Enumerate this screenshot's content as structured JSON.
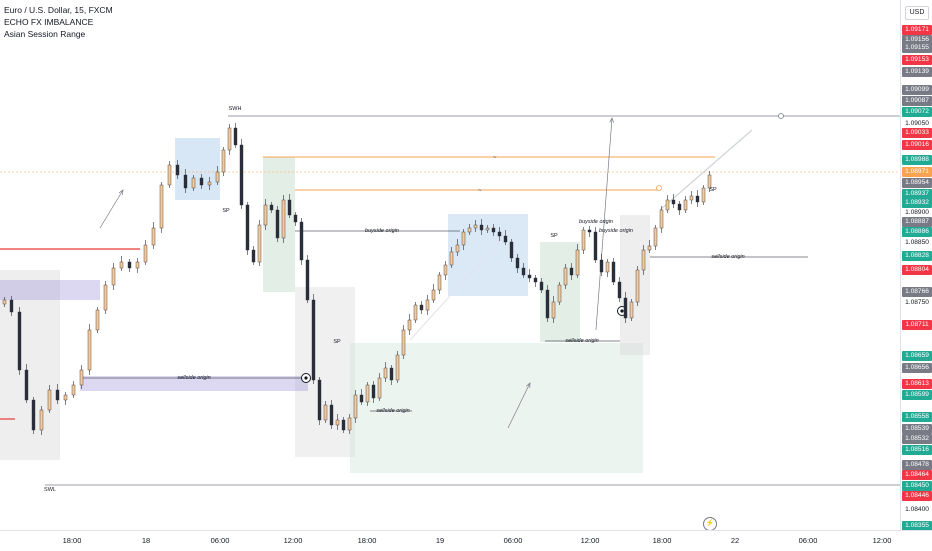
{
  "legend": {
    "symbol": "Euro / U.S. Dollar, 15, FXCM",
    "indicator_1": "ECHO FX IMBALANCE",
    "indicator_2": "Asian Session Range"
  },
  "price_scale": {
    "currency": "USD",
    "labels": [
      {
        "text": "1.09171",
        "color": "#f23645"
      },
      {
        "text": "1.09156",
        "color": "#787b86"
      },
      {
        "text": "1.09155",
        "color": "#787b86"
      },
      {
        "text": "1.09153",
        "color": "#f23645"
      },
      {
        "text": "1.09139",
        "color": "#787b86"
      },
      {
        "text": "1.09099",
        "color": "#787b86"
      },
      {
        "text": "1.09087",
        "color": "#787b86"
      },
      {
        "text": "1.09072",
        "color": "#22ab94"
      },
      {
        "text": "1.09050",
        "color": ""
      },
      {
        "text": "1.09033",
        "color": "#f23645"
      },
      {
        "text": "1.09016",
        "color": "#f23645"
      },
      {
        "text": "1.08988",
        "color": "#22ab94"
      },
      {
        "text": "1.08971",
        "color": "#f7a350"
      },
      {
        "text": "1.08954",
        "color": "#787b86"
      },
      {
        "text": "1.08937",
        "color": "#22ab94"
      },
      {
        "text": "1.08932",
        "color": "#22ab94"
      },
      {
        "text": "1.08900",
        "color": ""
      },
      {
        "text": "1.08887",
        "color": "#787b86"
      },
      {
        "text": "1.08886",
        "color": "#22ab94"
      },
      {
        "text": "1.08850",
        "color": ""
      },
      {
        "text": "1.08828",
        "color": "#22ab94"
      },
      {
        "text": "1.08804",
        "color": "#f23645"
      },
      {
        "text": "1.08766",
        "color": "#787b86"
      },
      {
        "text": "1.08750",
        "color": ""
      },
      {
        "text": "1.08711",
        "color": "#f23645"
      },
      {
        "text": "1.08659",
        "color": "#22ab94"
      },
      {
        "text": "1.08656",
        "color": "#787b86"
      },
      {
        "text": "1.08613",
        "color": "#f23645"
      },
      {
        "text": "1.08599",
        "color": "#22ab94"
      },
      {
        "text": "1.08558",
        "color": "#22ab94"
      },
      {
        "text": "1.08539",
        "color": "#787b86"
      },
      {
        "text": "1.08532",
        "color": "#787b86"
      },
      {
        "text": "1.08516",
        "color": "#22ab94"
      },
      {
        "text": "1.08478",
        "color": "#787b86"
      },
      {
        "text": "1.08464",
        "color": "#f23645"
      },
      {
        "text": "1.08450",
        "color": "#22ab94"
      },
      {
        "text": "1.08446",
        "color": "#f23645"
      },
      {
        "text": "1.08400",
        "color": ""
      },
      {
        "text": "1.08355",
        "color": "#22ab94"
      }
    ]
  },
  "time_axis": [
    "18:00",
    "18",
    "06:00",
    "12:00",
    "18:00",
    "19",
    "06:00",
    "12:00",
    "18:00",
    "22",
    "06:00",
    "12:00"
  ],
  "annotations": {
    "swh": "SWH",
    "swl": "SWL",
    "sp": "SP",
    "buyside_origin": "buyside origin",
    "sellside_origin": "sellside origin"
  },
  "colors": {
    "up": "#26a69a",
    "down": "#ef5350",
    "bull_candle": "#f5c99a",
    "bear_candle": "#2a2e39",
    "orange_line": "#f7a350",
    "red_line": "#e53935",
    "purple_zone": "#9c8fd8",
    "blue_zone": "#b7d4ef",
    "green_zone": "#cfe3d6",
    "gray_zone": "#d9d9dc"
  }
}
